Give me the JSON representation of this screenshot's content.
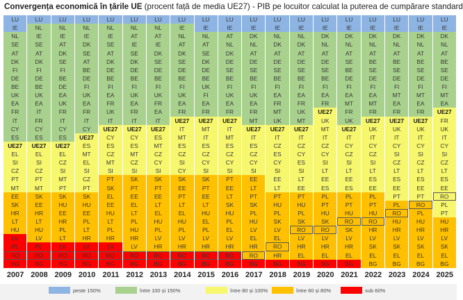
{
  "title": {
    "bold": "Convergența economică în țările UE",
    "rest": " (procent față de media UE27) - PIB pe locuitor calculat la puterea de cumpărare standard"
  },
  "highlight_country": "RO",
  "chart_data": {
    "type": "table",
    "title": "Convergența economică în țările UE (procent față de media UE27) - PIB pe locuitor calculat la puterea de cumpărare standard",
    "band_order": [
      "peste150",
      "100-150",
      "80-100",
      "60-80",
      "sub60"
    ],
    "legend": [
      {
        "label": "peste 150%",
        "color": "#8db4e2"
      },
      {
        "label": "între 100 și 150%",
        "color": "#a9d18e"
      },
      {
        "label": "între 80 și 100%",
        "color": "#f7f76e"
      },
      {
        "label": "între 60 și 80%",
        "color": "#ffc000"
      },
      {
        "label": "sub 60%",
        "color": "#ff0000"
      }
    ],
    "columns": [
      {
        "year": "2007",
        "band_counts": [
          2,
          13,
          6,
          5,
          4
        ],
        "ranking": [
          "LU",
          "IE",
          "NL",
          "SE",
          "AT",
          "DK",
          "FI",
          "DE",
          "BE",
          "UK",
          "EA",
          "FR",
          "IT",
          "CY",
          "ES",
          "UE27",
          "EL",
          "SI",
          "CZ",
          "PT",
          "MT",
          "EE",
          "SK",
          "HR",
          "LT",
          "HU",
          "LV",
          "PL",
          "RO",
          "BG"
        ]
      },
      {
        "year": "2008",
        "band_counts": [
          1,
          14,
          6,
          6,
          3
        ],
        "ranking": [
          "LU",
          "NL",
          "IE",
          "SE",
          "AT",
          "DK",
          "FI",
          "DE",
          "BE",
          "UK",
          "EA",
          "IT",
          "FR",
          "CY",
          "ES",
          "UE27",
          "EL",
          "SI",
          "CZ",
          "PT",
          "MT",
          "SK",
          "EE",
          "HR",
          "LT",
          "HU",
          "LV",
          "PL",
          "RO",
          "BG"
        ]
      },
      {
        "year": "2009",
        "band_counts": [
          1,
          14,
          6,
          6,
          3
        ],
        "ranking": [
          "LU",
          "NL",
          "IE",
          "AT",
          "DK",
          "SE",
          "FI",
          "BE",
          "DE",
          "EA",
          "UK",
          "FR",
          "IT",
          "CY",
          "ES",
          "UE27",
          "EL",
          "CZ",
          "SI",
          "MT",
          "PT",
          "SK",
          "HU",
          "EE",
          "HR",
          "PL",
          "LT",
          "LV",
          "RO",
          "BG"
        ]
      },
      {
        "year": "2010",
        "band_counts": [
          1,
          13,
          7,
          6,
          3
        ],
        "ranking": [
          "LU",
          "NL",
          "IE",
          "DK",
          "SE",
          "AT",
          "BE",
          "DE",
          "FI",
          "UK",
          "EA",
          "FR",
          "IT",
          "CY",
          "UE27",
          "ES",
          "MT",
          "EL",
          "SI",
          "CZ",
          "PT",
          "SK",
          "HU",
          "EE",
          "PL",
          "LT",
          "HR",
          "LV",
          "RO",
          "BG"
        ]
      },
      {
        "year": "2011",
        "band_counts": [
          1,
          12,
          6,
          8,
          3
        ],
        "ranking": [
          "LU",
          "NL",
          "IE",
          "SE",
          "AT",
          "DK",
          "DE",
          "BE",
          "FI",
          "EA",
          "FR",
          "UK",
          "IT",
          "UE27",
          "CY",
          "ES",
          "CZ",
          "MT",
          "SI",
          "PT",
          "SK",
          "EL",
          "EE",
          "HU",
          "LT",
          "PL",
          "HR",
          "LV",
          "RO",
          "BG"
        ]
      },
      {
        "year": "2012",
        "band_counts": [
          1,
          12,
          6,
          9,
          2
        ],
        "ranking": [
          "LU",
          "NL",
          "AT",
          "IE",
          "SE",
          "DK",
          "DE",
          "BE",
          "FI",
          "UK",
          "EA",
          "FR",
          "IT",
          "UE27",
          "CY",
          "ES",
          "MT",
          "CZ",
          "SI",
          "SK",
          "PT",
          "EE",
          "EL",
          "LT",
          "PL",
          "HU",
          "HR",
          "LV",
          "RO",
          "BG"
        ]
      },
      {
        "year": "2013",
        "band_counts": [
          1,
          12,
          6,
          9,
          2
        ],
        "ranking": [
          "LU",
          "NL",
          "AT",
          "IE",
          "DK",
          "SE",
          "DE",
          "BE",
          "FI",
          "UK",
          "FR",
          "EA",
          "IT",
          "UE27",
          "ES",
          "MT",
          "CZ",
          "CY",
          "SI",
          "SK",
          "PT",
          "EE",
          "LT",
          "EL",
          "HU",
          "PL",
          "LV",
          "HR",
          "RO",
          "BG"
        ]
      },
      {
        "year": "2014",
        "band_counts": [
          1,
          11,
          7,
          9,
          2
        ],
        "ranking": [
          "LU",
          "IE",
          "NL",
          "AT",
          "DK",
          "SE",
          "DE",
          "BE",
          "FI",
          "UK",
          "EA",
          "FR",
          "UE27",
          "IT",
          "MT",
          "ES",
          "CZ",
          "SI",
          "CY",
          "SK",
          "EE",
          "PT",
          "LT",
          "EL",
          "HU",
          "PL",
          "LV",
          "HR",
          "RO",
          "BG"
        ]
      },
      {
        "year": "2015",
        "band_counts": [
          2,
          10,
          7,
          9,
          2
        ],
        "ranking": [
          "LU",
          "IE",
          "NL",
          "AT",
          "SE",
          "DK",
          "DE",
          "BE",
          "UK",
          "FI",
          "EA",
          "FR",
          "UE27",
          "MT",
          "IT",
          "ES",
          "CZ",
          "CY",
          "SI",
          "SK",
          "PT",
          "EE",
          "LT",
          "HU",
          "EL",
          "PL",
          "LV",
          "HR",
          "RO",
          "BG"
        ]
      },
      {
        "year": "2016",
        "band_counts": [
          2,
          10,
          7,
          9,
          2
        ],
        "ranking": [
          "LU",
          "IE",
          "AT",
          "NL",
          "DK",
          "DE",
          "SE",
          "BE",
          "FI",
          "UK",
          "EA",
          "FR",
          "UE27",
          "IT",
          "MT",
          "ES",
          "CZ",
          "CY",
          "SI",
          "PT",
          "EE",
          "LT",
          "SK",
          "HU",
          "PL",
          "EL",
          "LV",
          "HR",
          "RO",
          "BG"
        ]
      },
      {
        "year": "2017",
        "band_counts": [
          2,
          11,
          6,
          10,
          1
        ],
        "ranking": [
          "LU",
          "IE",
          "DK",
          "NL",
          "AT",
          "DE",
          "SE",
          "BE",
          "FI",
          "UK",
          "EA",
          "FR",
          "MT",
          "UE27",
          "IT",
          "ES",
          "CZ",
          "CY",
          "SI",
          "EE",
          "LT",
          "PT",
          "SK",
          "PL",
          "HU",
          "LV",
          "EL",
          "HR",
          "RO",
          "BG"
        ]
      },
      {
        "year": "2018",
        "band_counts": [
          2,
          11,
          8,
          8,
          1
        ],
        "ranking": [
          "LU",
          "IE",
          "NL",
          "DK",
          "AT",
          "DE",
          "SE",
          "BE",
          "FI",
          "EA",
          "FR",
          "MT",
          "UK",
          "UE27",
          "IT",
          "CZ",
          "ES",
          "CY",
          "SI",
          "EE",
          "LT",
          "PT",
          "HU",
          "PL",
          "SK",
          "LV",
          "EL",
          "RO",
          "HR",
          "BG"
        ]
      },
      {
        "year": "2019",
        "band_counts": [
          2,
          11,
          8,
          8,
          1
        ],
        "ranking": [
          "LU",
          "IE",
          "NL",
          "DK",
          "AT",
          "DE",
          "SE",
          "BE",
          "FI",
          "EA",
          "FR",
          "UK",
          "MT",
          "UE27",
          "IT",
          "CZ",
          "CY",
          "ES",
          "SI",
          "LT",
          "EE",
          "PT",
          "HU",
          "PL",
          "SK",
          "RO",
          "LV",
          "HR",
          "EL",
          "BG"
        ]
      },
      {
        "year": "2020",
        "band_counts": [
          2,
          9,
          10,
          8,
          1
        ],
        "ranking": [
          "LU",
          "IE",
          "DK",
          "NL",
          "AT",
          "DE",
          "SE",
          "BE",
          "FI",
          "EA",
          "FR",
          "UE27",
          "UK",
          "MT",
          "IT",
          "CZ",
          "CY",
          "SI",
          "LT",
          "EE",
          "ES",
          "PL",
          "PT",
          "HU",
          "SK",
          "RO",
          "LV",
          "HR",
          "EL",
          "BG"
        ]
      },
      {
        "year": "2021",
        "band_counts": [
          2,
          11,
          8,
          8,
          1
        ],
        "ranking": [
          "LU",
          "IE",
          "DK",
          "NL",
          "AT",
          "SE",
          "BE",
          "DE",
          "FI",
          "EA",
          "MT",
          "FR",
          "UK",
          "UE27",
          "IT",
          "CY",
          "CZ",
          "SI",
          "LT",
          "EE",
          "ES",
          "PL",
          "PT",
          "HU",
          "RO",
          "SK",
          "LV",
          "HR",
          "EL",
          "BG"
        ]
      },
      {
        "year": "2022",
        "band_counts": [
          2,
          10,
          9,
          9,
          0
        ],
        "ranking": [
          "LU",
          "IE",
          "DK",
          "NL",
          "AT",
          "BE",
          "SE",
          "DE",
          "FI",
          "EA",
          "MT",
          "FR",
          "UE27",
          "UK",
          "IT",
          "CY",
          "CZ",
          "SI",
          "LT",
          "ES",
          "EE",
          "PL",
          "PT",
          "HU",
          "RO",
          "HR",
          "LV",
          "SK",
          "EL",
          "BG"
        ]
      },
      {
        "year": "2023",
        "band_counts": [
          2,
          10,
          10,
          8,
          0
        ],
        "ranking": [
          "LU",
          "IE",
          "DK",
          "NL",
          "AT",
          "BE",
          "SE",
          "DE",
          "FI",
          "MT",
          "EA",
          "FR",
          "UE27",
          "UK",
          "IT",
          "CY",
          "SI",
          "CZ",
          "LT",
          "ES",
          "EE",
          "PT",
          "PL",
          "RO",
          "HU",
          "HR",
          "LV",
          "SK",
          "EL",
          "BG"
        ]
      },
      {
        "year": "2024",
        "band_counts": [
          2,
          10,
          10,
          8,
          0
        ],
        "ranking": [
          "LU",
          "IE",
          "DK",
          "NL",
          "AT",
          "BE",
          "SE",
          "DE",
          "FI",
          "MT",
          "EA",
          "FR",
          "UE27",
          "UK",
          "IT",
          "CY",
          "SI",
          "CZ",
          "LT",
          "ES",
          "EE",
          "PT",
          "RO",
          "PL",
          "HU",
          "HR",
          "LV",
          "SK",
          "EL",
          "BG"
        ]
      },
      {
        "year": "2025",
        "band_counts": [
          2,
          9,
          13,
          6,
          0
        ],
        "ranking": [
          "LU",
          "IE",
          "DK",
          "NL",
          "AT",
          "BE",
          "SE",
          "DE",
          "FI",
          "MT",
          "EA",
          "UE27",
          "FR",
          "UK",
          "IT",
          "CY",
          "SI",
          "CZ",
          "LT",
          "ES",
          "EE",
          "RO",
          "PL",
          "PT",
          "HU",
          "HR",
          "LV",
          "SK",
          "EL",
          "BG"
        ]
      }
    ]
  }
}
